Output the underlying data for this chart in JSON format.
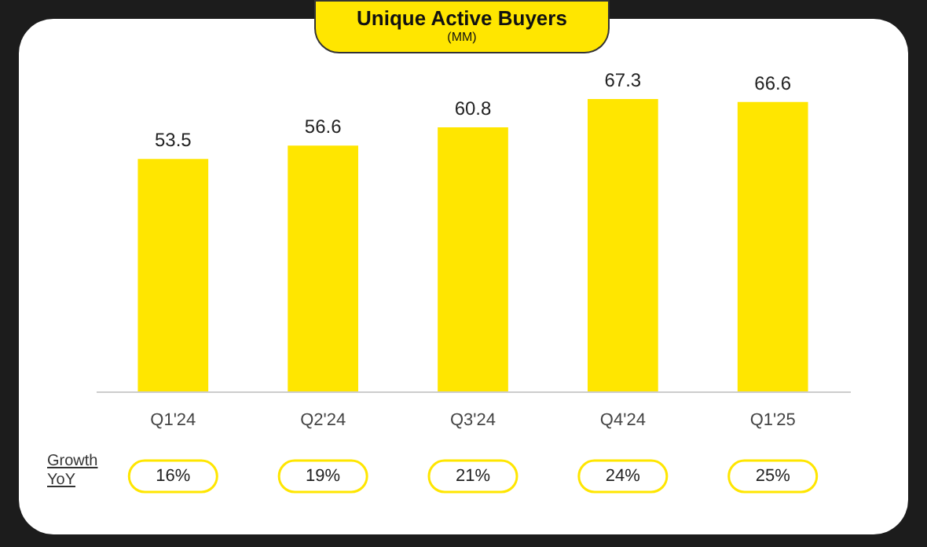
{
  "chart_data": {
    "type": "bar",
    "title": "Unique Active Buyers",
    "subtitle": "(MM)",
    "categories": [
      "Q1'24",
      "Q2'24",
      "Q3'24",
      "Q4'24",
      "Q1'25"
    ],
    "values": [
      53.5,
      56.6,
      60.8,
      67.3,
      66.6
    ],
    "color": "#ffe600",
    "data_labels": true,
    "annotations": [
      "Growth YoY",
      "16%",
      "19%",
      "21%",
      "24%",
      "25%"
    ]
  }
}
